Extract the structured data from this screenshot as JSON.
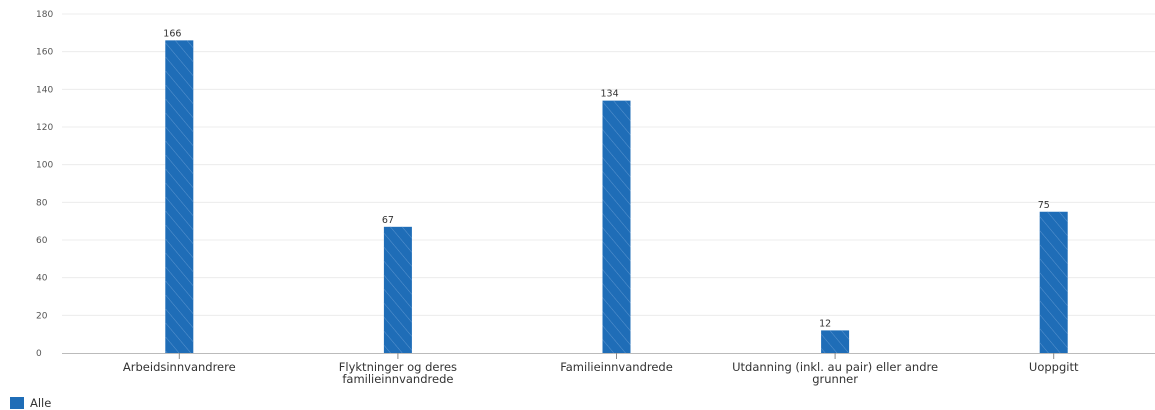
{
  "chart_data": {
    "type": "bar",
    "categories": [
      "Arbeidsinnvandrere",
      "Flyktninger og deres familieinnvandrede",
      "Familieinnvandrede",
      "Utdanning (inkl. au pair) eller andre grunner",
      "Uoppgitt"
    ],
    "category_lines": [
      [
        "Arbeidsinnvandrere"
      ],
      [
        "Flyktninger og deres",
        "familieinnvandrede"
      ],
      [
        "Familieinnvandrede"
      ],
      [
        "Utdanning (inkl. au pair) eller andre",
        "grunner"
      ],
      [
        "Uoppgitt"
      ]
    ],
    "series": [
      {
        "name": "Alle",
        "values": [
          166,
          67,
          134,
          12,
          75
        ]
      }
    ],
    "data_labels": [
      "166",
      "67",
      "134",
      "12",
      "75"
    ],
    "ylim": [
      0,
      180
    ],
    "yticks": [
      "0",
      "20",
      "40",
      "60",
      "80",
      "100",
      "120",
      "140",
      "160",
      "180"
    ],
    "grid": true,
    "legend_position": "bottom-left",
    "bar_color": "#1f6db7"
  },
  "legend": {
    "label": "Alle"
  }
}
